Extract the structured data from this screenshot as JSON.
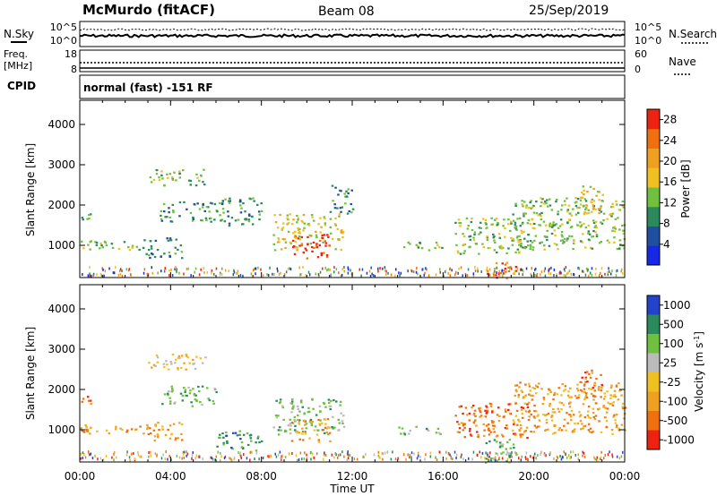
{
  "header": {
    "station": "McMurdo (fitACF)",
    "beam": "Beam 08",
    "date": "25/Sep/2019"
  },
  "status_panel": {
    "left_label_1": "N.Sky",
    "left_label_2_line1": "Freq.",
    "left_label_2_line2": "[MHz]",
    "left_label_3": "CPID",
    "right_label_1": "N.Search",
    "right_label_2": "Nave",
    "nsky_ticks": [
      "10^5",
      "10^0"
    ],
    "nsearch_ticks": [
      "10^5",
      "10^0"
    ],
    "freq_ticks": [
      "18",
      "8"
    ],
    "nave_ticks": [
      "60",
      "0"
    ],
    "cpid_text": "normal (fast) -151 RF"
  },
  "colors": {
    "power_scale": [
      "#1528e8",
      "#1f4fa0",
      "#2a8a5c",
      "#70c040",
      "#f0c020",
      "#f0a020",
      "#f07010",
      "#ee2211"
    ],
    "velocity_scale": [
      "#2244cc",
      "#2a8a5c",
      "#70c040",
      "#bbbbbb",
      "#f0c020",
      "#f0a020",
      "#f07010",
      "#ee2211"
    ]
  },
  "chart_data": [
    {
      "type": "heatmap",
      "panel": "power",
      "title": "",
      "ylabel": "Slant Range [km]",
      "xlabel": "",
      "ylim": [
        200,
        4600
      ],
      "xlim_hours": [
        0,
        24
      ],
      "yticks": [
        "1000",
        "2000",
        "3000",
        "4000"
      ],
      "colorbar_label": "Power [dB]",
      "colorbar_ticks": [
        "4",
        "8",
        "12",
        "16",
        "20",
        "24",
        "28"
      ],
      "colorbar_range": [
        0,
        30
      ],
      "regions": [
        {
          "t": [
            0.0,
            2.8
          ],
          "range_km": [
            900,
            1150
          ],
          "level": 3
        },
        {
          "t": [
            0.0,
            0.5
          ],
          "range_km": [
            1600,
            1900
          ],
          "level": 2
        },
        {
          "t": [
            2.8,
            4.5
          ],
          "range_km": [
            700,
            1200
          ],
          "level": 2
        },
        {
          "t": [
            3.0,
            5.5
          ],
          "range_km": [
            2500,
            2900
          ],
          "level": 3
        },
        {
          "t": [
            3.5,
            6.0
          ],
          "range_km": [
            1600,
            2100
          ],
          "level": 2
        },
        {
          "t": [
            6.0,
            8.0
          ],
          "range_km": [
            1500,
            2200
          ],
          "level": 2
        },
        {
          "t": [
            8.5,
            11.6
          ],
          "range_km": [
            900,
            1800
          ],
          "level": 4
        },
        {
          "t": [
            9.3,
            11.0
          ],
          "range_km": [
            700,
            1300
          ],
          "level": 7
        },
        {
          "t": [
            11.0,
            12.0
          ],
          "range_km": [
            1800,
            2500
          ],
          "level": 2
        },
        {
          "t": [
            14.0,
            16.0
          ],
          "range_km": [
            900,
            1100
          ],
          "level": 3
        },
        {
          "t": [
            16.5,
            20.0
          ],
          "range_km": [
            800,
            1700
          ],
          "level": 3
        },
        {
          "t": [
            17.8,
            19.3
          ],
          "range_km": [
            200,
            600
          ],
          "level": 6
        },
        {
          "t": [
            19.0,
            24.0
          ],
          "range_km": [
            900,
            2200
          ],
          "level": 3
        },
        {
          "t": [
            22.0,
            23.0
          ],
          "range_km": [
            1800,
            2500
          ],
          "level": 4
        }
      ]
    },
    {
      "type": "heatmap",
      "panel": "velocity",
      "title": "",
      "ylabel": "Slant Range [km]",
      "xlabel": "Time UT",
      "ylim": [
        200,
        4600
      ],
      "xlim_hours": [
        0,
        24
      ],
      "yticks": [
        "1000",
        "2000",
        "3000",
        "4000"
      ],
      "xticks": [
        "00:00",
        "04:00",
        "08:00",
        "12:00",
        "16:00",
        "20:00",
        "00:00"
      ],
      "colorbar_label": "Velocity [m s^-1]",
      "colorbar_ticks": [
        "1000",
        "500",
        "100",
        "25",
        "-25",
        "-100",
        "-500",
        "-1000"
      ],
      "regions": [
        {
          "t": [
            0.0,
            2.8
          ],
          "range_km": [
            900,
            1150
          ],
          "level": 5
        },
        {
          "t": [
            0.0,
            0.5
          ],
          "range_km": [
            1600,
            1900
          ],
          "level": 6
        },
        {
          "t": [
            2.8,
            4.5
          ],
          "range_km": [
            700,
            1200
          ],
          "level": 5
        },
        {
          "t": [
            3.0,
            5.5
          ],
          "range_km": [
            2500,
            2900
          ],
          "level": 4
        },
        {
          "t": [
            3.5,
            6.0
          ],
          "range_km": [
            1600,
            2100
          ],
          "level": 2
        },
        {
          "t": [
            6.0,
            8.0
          ],
          "range_km": [
            500,
            1000
          ],
          "level": 1
        },
        {
          "t": [
            8.5,
            11.6
          ],
          "range_km": [
            900,
            1800
          ],
          "level": 2
        },
        {
          "t": [
            9.3,
            11.0
          ],
          "range_km": [
            700,
            1300
          ],
          "level": 5
        },
        {
          "t": [
            14.0,
            16.0
          ],
          "range_km": [
            900,
            1100
          ],
          "level": 2
        },
        {
          "t": [
            16.5,
            20.0
          ],
          "range_km": [
            800,
            1700
          ],
          "level": 6
        },
        {
          "t": [
            17.8,
            19.3
          ],
          "range_km": [
            200,
            800
          ],
          "level": 2
        },
        {
          "t": [
            19.0,
            24.0
          ],
          "range_km": [
            900,
            2200
          ],
          "level": 5
        },
        {
          "t": [
            22.0,
            23.0
          ],
          "range_km": [
            1800,
            2500
          ],
          "level": 6
        }
      ]
    }
  ]
}
